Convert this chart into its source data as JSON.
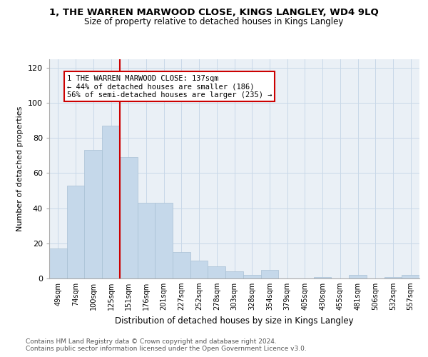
{
  "title": "1, THE WARREN MARWOOD CLOSE, KINGS LANGLEY, WD4 9LQ",
  "subtitle": "Size of property relative to detached houses in Kings Langley",
  "xlabel": "Distribution of detached houses by size in Kings Langley",
  "ylabel": "Number of detached properties",
  "bar_color": "#c5d8ea",
  "bar_edge_color": "#a8c0d4",
  "categories": [
    "49sqm",
    "74sqm",
    "100sqm",
    "125sqm",
    "151sqm",
    "176sqm",
    "201sqm",
    "227sqm",
    "252sqm",
    "278sqm",
    "303sqm",
    "328sqm",
    "354sqm",
    "379sqm",
    "405sqm",
    "430sqm",
    "455sqm",
    "481sqm",
    "506sqm",
    "532sqm",
    "557sqm"
  ],
  "values": [
    17,
    53,
    73,
    87,
    69,
    43,
    43,
    15,
    10,
    7,
    4,
    2,
    5,
    0,
    0,
    1,
    0,
    2,
    0,
    1,
    2
  ],
  "vline_x": 3.5,
  "annotation_line1": "1 THE WARREN MARWOOD CLOSE: 137sqm",
  "annotation_line2": "← 44% of detached houses are smaller (186)",
  "annotation_line3": "56% of semi-detached houses are larger (235) →",
  "vline_color": "#cc0000",
  "annotation_box_edge": "#cc0000",
  "ylim": [
    0,
    125
  ],
  "yticks": [
    0,
    20,
    40,
    60,
    80,
    100,
    120
  ],
  "footnote1": "Contains HM Land Registry data © Crown copyright and database right 2024.",
  "footnote2": "Contains public sector information licensed under the Open Government Licence v3.0.",
  "grid_color": "#c8d8e8",
  "background_color": "#eaf0f6"
}
